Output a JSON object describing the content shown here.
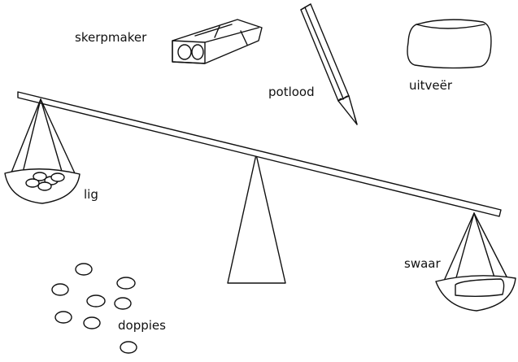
{
  "labels": {
    "sharpener": "skerpmaker",
    "pencil": "potlood",
    "eraser": "uitveër",
    "light": "lig",
    "heavy": "swaar",
    "caps": "doppies"
  }
}
